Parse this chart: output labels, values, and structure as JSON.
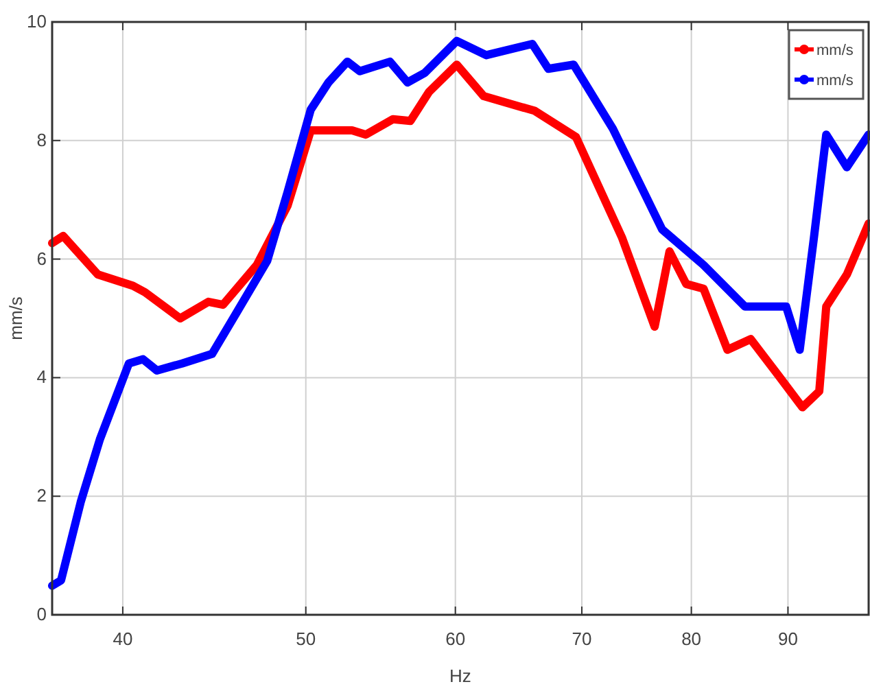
{
  "chart_data": {
    "type": "line",
    "xlabel": "Hz",
    "ylabel": "mm/s",
    "log": "x",
    "xlim": [
      36.7,
      99.3
    ],
    "xticks": [
      40,
      50,
      60,
      70,
      80,
      90
    ],
    "ylim": [
      0,
      10
    ],
    "yticks": [
      0,
      2,
      4,
      6,
      8,
      10
    ],
    "grid": true,
    "legend": "top right",
    "line_style": "solid",
    "series": [
      {
        "name": "mm/s",
        "color": "#ff0000",
        "x": [
          36.7,
          37.2,
          38.8,
          40.5,
          41.1,
          42.9,
          44.4,
          45.2,
          47.1,
          48.9,
          50.3,
          52.9,
          53.8,
          55.6,
          56.8,
          58.1,
          60.1,
          62.1,
          66.1,
          69.5,
          73.5,
          76.5,
          77.9,
          79.5,
          81.2,
          83.6,
          86.0,
          88.9,
          91.6,
          93.5,
          94.3,
          96.7,
          99.3
        ],
        "values": [
          6.27,
          6.39,
          5.74,
          5.55,
          5.44,
          5.0,
          5.28,
          5.23,
          5.9,
          6.9,
          8.17,
          8.17,
          8.1,
          8.36,
          8.33,
          8.82,
          9.28,
          8.75,
          8.5,
          8.06,
          6.37,
          4.86,
          6.13,
          5.58,
          5.5,
          4.47,
          4.65,
          4.05,
          3.5,
          3.77,
          5.2,
          5.74,
          6.6
        ]
      },
      {
        "name": "mm/s",
        "color": "#0000ff",
        "x": [
          36.7,
          37.1,
          38.0,
          38.9,
          40.3,
          41.0,
          41.7,
          43.0,
          44.6,
          46.0,
          47.7,
          48.9,
          50.3,
          51.4,
          52.6,
          53.4,
          55.4,
          56.6,
          57.8,
          60.1,
          62.3,
          65.9,
          67.2,
          69.3,
          72.7,
          77.2,
          81.2,
          85.4,
          89.8,
          91.3,
          92.9,
          94.3,
          96.7,
          99.3
        ],
        "values": [
          0.49,
          0.58,
          1.9,
          2.96,
          4.24,
          4.31,
          4.12,
          4.24,
          4.4,
          5.12,
          5.97,
          7.13,
          8.52,
          8.98,
          9.33,
          9.17,
          9.33,
          8.98,
          9.14,
          9.68,
          9.44,
          9.63,
          9.21,
          9.28,
          8.2,
          6.5,
          5.9,
          5.2,
          5.2,
          4.47,
          6.37,
          8.1,
          7.55,
          8.1
        ]
      }
    ]
  }
}
